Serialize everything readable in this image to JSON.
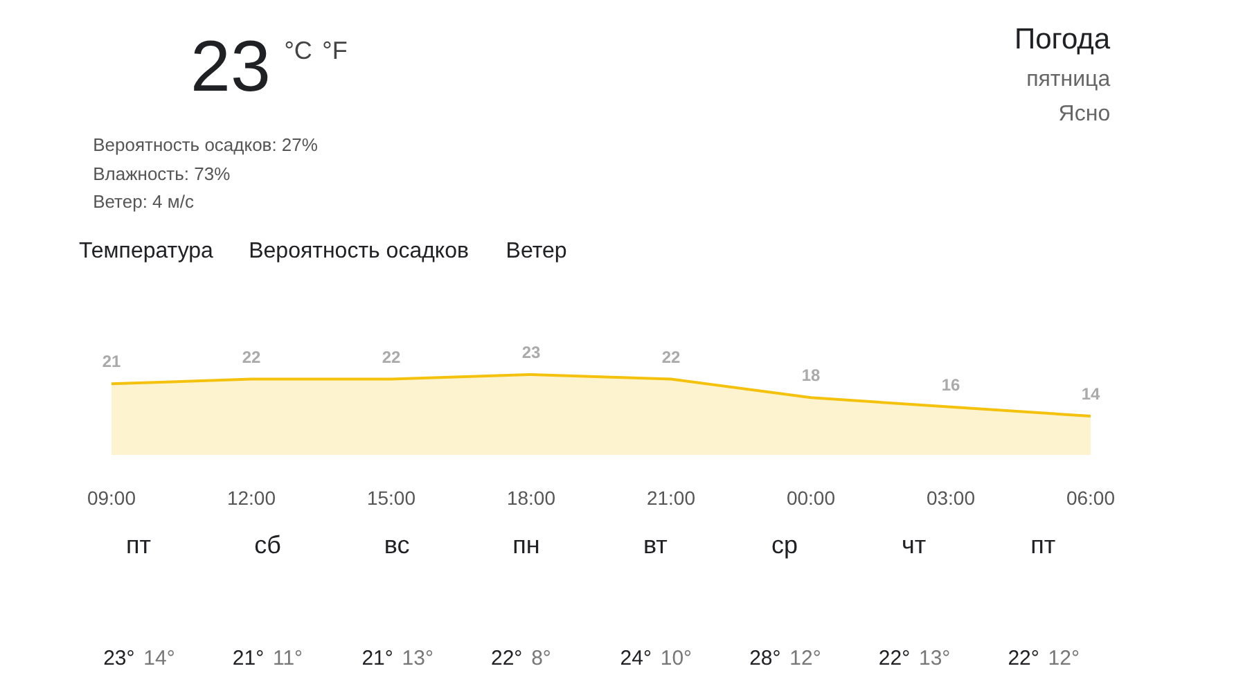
{
  "chart_data": {
    "type": "area",
    "categories": [
      "09:00",
      "12:00",
      "15:00",
      "18:00",
      "21:00",
      "00:00",
      "03:00",
      "06:00"
    ],
    "values": [
      21,
      22,
      22,
      23,
      22,
      18,
      16,
      14
    ],
    "color": "#f4c20d",
    "data_labels": true,
    "annotations": [
      "23",
      "°C",
      "°F",
      "Вероятность осадков: 27%",
      "Влажность: 73%",
      "Ветер: 4 м/с",
      "Температура",
      "Вероятность осадков",
      "Ветер",
      "Погода",
      "пятница",
      "Ясно",
      "пт",
      "23°",
      "14°",
      "сб",
      "21°",
      "11°",
      "вс",
      "21°",
      "13°",
      "пн",
      "22°",
      "8°",
      "вт",
      "24°",
      "10°",
      "ср",
      "28°",
      "12°",
      "чт",
      "22°",
      "13°",
      "пт",
      "22°",
      "12°"
    ]
  }
}
